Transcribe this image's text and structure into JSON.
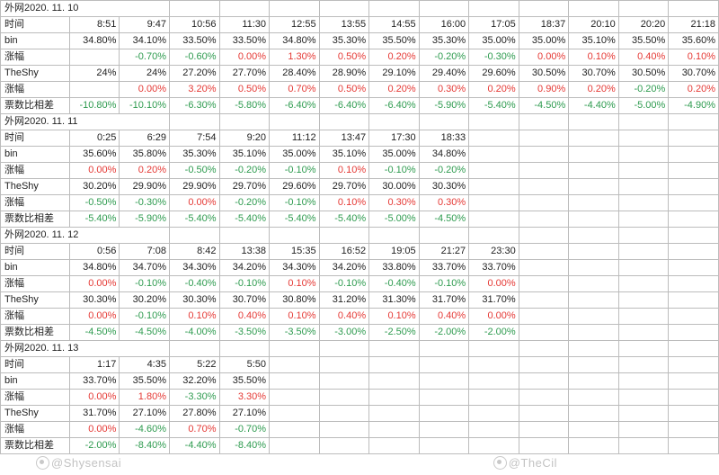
{
  "colors": {
    "positive": "#e53935",
    "negative": "#2e9b4f",
    "default": "#222222",
    "border": "#bcbcbc",
    "background": "#ffffff"
  },
  "row_labels": {
    "time": "时间",
    "bin": "bin",
    "binChange": "涨幅",
    "theshy": "TheShy",
    "theshyChange": "涨幅",
    "diff": "票数比相差"
  },
  "column_count": 13,
  "days": [
    {
      "title": "外网2020. 11. 10",
      "times": [
        "8:51",
        "9:47",
        "10:56",
        "11:30",
        "12:55",
        "13:55",
        "14:55",
        "16:00",
        "17:05",
        "18:37",
        "20:10",
        "20:20",
        "21:18"
      ],
      "bin": [
        "34.80%",
        "34.10%",
        "33.50%",
        "33.50%",
        "34.80%",
        "35.30%",
        "35.50%",
        "35.30%",
        "35.00%",
        "35.00%",
        "35.10%",
        "35.50%",
        "35.60%"
      ],
      "binChange": [
        "",
        "-0.70%",
        "-0.60%",
        "0.00%",
        "1.30%",
        "0.50%",
        "0.20%",
        "-0.20%",
        "-0.30%",
        "0.00%",
        "0.10%",
        "0.40%",
        "0.10%"
      ],
      "theshy": [
        "24%",
        "24%",
        "27.20%",
        "27.70%",
        "28.40%",
        "28.90%",
        "29.10%",
        "29.40%",
        "29.60%",
        "30.50%",
        "30.70%",
        "30.50%",
        "30.70%"
      ],
      "theshyChange": [
        "",
        "0.00%",
        "3.20%",
        "0.50%",
        "0.70%",
        "0.50%",
        "0.20%",
        "0.30%",
        "0.20%",
        "0.90%",
        "0.20%",
        "-0.20%",
        "0.20%"
      ],
      "diff": [
        "-10.80%",
        "-10.10%",
        "-6.30%",
        "-5.80%",
        "-6.40%",
        "-6.40%",
        "-6.40%",
        "-5.90%",
        "-5.40%",
        "-4.50%",
        "-4.40%",
        "-5.00%",
        "-4.90%"
      ]
    },
    {
      "title": "外网2020. 11. 11",
      "times": [
        "0:25",
        "6:29",
        "7:54",
        "9:20",
        "11:12",
        "13:47",
        "17:30",
        "18:33"
      ],
      "bin": [
        "35.60%",
        "35.80%",
        "35.30%",
        "35.10%",
        "35.00%",
        "35.10%",
        "35.00%",
        "34.80%"
      ],
      "binChange": [
        "0.00%",
        "0.20%",
        "-0.50%",
        "-0.20%",
        "-0.10%",
        "0.10%",
        "-0.10%",
        "-0.20%"
      ],
      "theshy": [
        "30.20%",
        "29.90%",
        "29.90%",
        "29.70%",
        "29.60%",
        "29.70%",
        "30.00%",
        "30.30%"
      ],
      "theshyChange": [
        "-0.50%",
        "-0.30%",
        "0.00%",
        "-0.20%",
        "-0.10%",
        "0.10%",
        "0.30%",
        "0.30%"
      ],
      "diff": [
        "-5.40%",
        "-5.90%",
        "-5.40%",
        "-5.40%",
        "-5.40%",
        "-5.40%",
        "-5.00%",
        "-4.50%"
      ]
    },
    {
      "title": "外网2020. 11. 12",
      "times": [
        "0:56",
        "7:08",
        "8:42",
        "13:38",
        "15:35",
        "16:52",
        "19:05",
        "21:27",
        "23:30"
      ],
      "bin": [
        "34.80%",
        "34.70%",
        "34.30%",
        "34.20%",
        "34.30%",
        "34.20%",
        "33.80%",
        "33.70%",
        "33.70%"
      ],
      "binChange": [
        "0.00%",
        "-0.10%",
        "-0.40%",
        "-0.10%",
        "0.10%",
        "-0.10%",
        "-0.40%",
        "-0.10%",
        "0.00%"
      ],
      "theshy": [
        "30.30%",
        "30.20%",
        "30.30%",
        "30.70%",
        "30.80%",
        "31.20%",
        "31.30%",
        "31.70%",
        "31.70%"
      ],
      "theshyChange": [
        "0.00%",
        "-0.10%",
        "0.10%",
        "0.40%",
        "0.10%",
        "0.40%",
        "0.10%",
        "0.40%",
        "0.00%"
      ],
      "diff": [
        "-4.50%",
        "-4.50%",
        "-4.00%",
        "-3.50%",
        "-3.50%",
        "-3.00%",
        "-2.50%",
        "-2.00%",
        "-2.00%"
      ]
    },
    {
      "title": "外网2020. 11. 13",
      "times": [
        "1:17",
        "4:35",
        "5:22",
        "5:50"
      ],
      "bin": [
        "33.70%",
        "35.50%",
        "32.20%",
        "35.50%"
      ],
      "binChange": [
        "0.00%",
        "1.80%",
        "-3.30%",
        "3.30%"
      ],
      "theshy": [
        "31.70%",
        "27.10%",
        "27.80%",
        "27.10%"
      ],
      "theshyChange": [
        "0.00%",
        "-4.60%",
        "0.70%",
        "-0.70%"
      ],
      "diff": [
        "-2.00%",
        "-8.40%",
        "-4.40%",
        "-8.40%"
      ]
    }
  ],
  "watermarks": {
    "left": "@Shysensai",
    "right": "@TheCil"
  }
}
